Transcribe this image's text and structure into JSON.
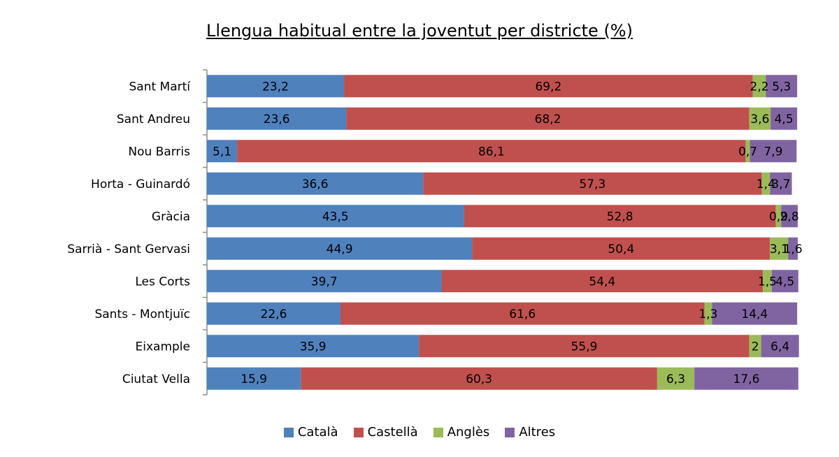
{
  "colors": {
    "catala": "#4f81bd",
    "castella": "#c0504d",
    "angles": "#9bbb59",
    "altres": "#8064a2"
  },
  "chart_data": {
    "type": "bar",
    "orientation": "horizontal",
    "stacked": true,
    "title": "Llengua habitual entre la joventut per districte (%)",
    "categories": [
      "Sant Martí",
      "Sant Andreu",
      "Nou Barris",
      "Horta - Guinardó",
      "Gràcia",
      "Sarrià - Sant Gervasi",
      "Les Corts",
      "Sants - Montjuïc",
      "Eixample",
      "Ciutat Vella"
    ],
    "series": [
      {
        "name": "Català",
        "color": "#4f81bd",
        "values": [
          23.2,
          23.6,
          5.1,
          36.6,
          43.5,
          44.9,
          39.7,
          22.6,
          35.9,
          15.9
        ],
        "labels": [
          "23,2",
          "23,6",
          "5,1",
          "36,6",
          "43,5",
          "44,9",
          "39,7",
          "22,6",
          "35,9",
          "15,9"
        ]
      },
      {
        "name": "Castellà",
        "color": "#c0504d",
        "values": [
          69.2,
          68.2,
          86.1,
          57.3,
          52.8,
          50.4,
          54.4,
          61.6,
          55.9,
          60.3
        ],
        "labels": [
          "69,2",
          "68,2",
          "86,1",
          "57,3",
          "52,8",
          "50,4",
          "54,4",
          "61,6",
          "55,9",
          "60,3"
        ]
      },
      {
        "name": "Anglès",
        "color": "#9bbb59",
        "values": [
          2.2,
          3.6,
          0.7,
          1.4,
          0.9,
          3.1,
          1.5,
          1.3,
          2,
          6.3
        ],
        "labels": [
          "2,2",
          "3,6",
          "0,7",
          "1,4",
          "0,9",
          "3,1",
          "1,5",
          "1,3",
          "2",
          "6,3"
        ]
      },
      {
        "name": "Altres",
        "color": "#8064a2",
        "values": [
          5.3,
          4.5,
          7.9,
          3.7,
          2.8,
          1.6,
          4.5,
          14.4,
          6.4,
          17.6
        ],
        "labels": [
          "5,3",
          "4,5",
          "7,9",
          "3,7",
          "2,8",
          "1,6",
          "4,5",
          "14,4",
          "6,4",
          "17,6"
        ]
      }
    ],
    "xlim": [
      0,
      100
    ],
    "grid": false,
    "legend_position": "bottom"
  }
}
